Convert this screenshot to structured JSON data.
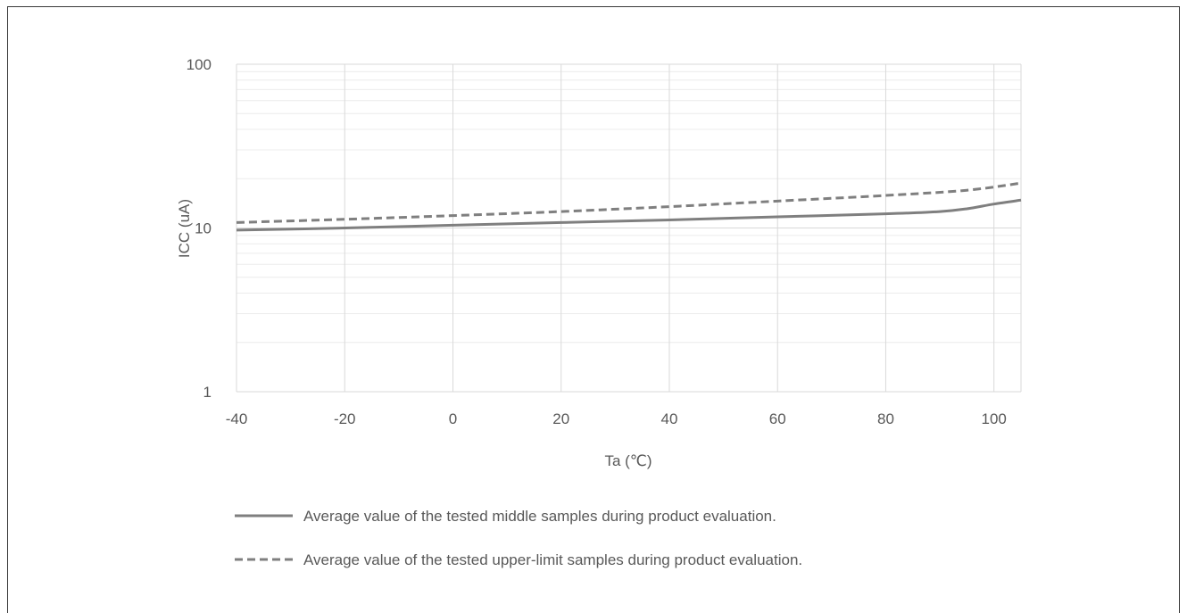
{
  "chart_data": {
    "type": "line",
    "title": "",
    "xlabel": "Ta (℃)",
    "ylabel": "ICC (uA)",
    "xlim": [
      -40,
      105
    ],
    "ylim": [
      1,
      100
    ],
    "y_scale": "log",
    "x_ticks": [
      -40,
      -20,
      0,
      20,
      40,
      60,
      80,
      100
    ],
    "x_tick_labels": [
      "-40",
      "-20",
      "0",
      "20",
      "40",
      "60",
      "80",
      "100"
    ],
    "y_ticks": [
      1,
      10,
      100
    ],
    "y_tick_labels": [
      "1",
      "10",
      "100"
    ],
    "grid": true,
    "legend_position": "bottom",
    "colors": {
      "series": "#7f7f7f",
      "grid": "#d9d9d9",
      "text": "#595959"
    },
    "series": [
      {
        "name": "Average value of the tested middle samples during product evaluation.",
        "style": "solid",
        "x": [
          -40,
          -20,
          0,
          20,
          40,
          60,
          80,
          90,
          95,
          100,
          105
        ],
        "y": [
          9.7,
          10.0,
          10.4,
          10.8,
          11.2,
          11.7,
          12.2,
          12.6,
          13.1,
          14.0,
          14.8
        ]
      },
      {
        "name": "Average value of the tested upper-limit samples during product evaluation.",
        "style": "dashed",
        "x": [
          -40,
          -20,
          0,
          20,
          40,
          60,
          80,
          95,
          105
        ],
        "y": [
          10.8,
          11.3,
          11.9,
          12.6,
          13.5,
          14.6,
          15.8,
          17.0,
          18.8
        ]
      }
    ]
  }
}
